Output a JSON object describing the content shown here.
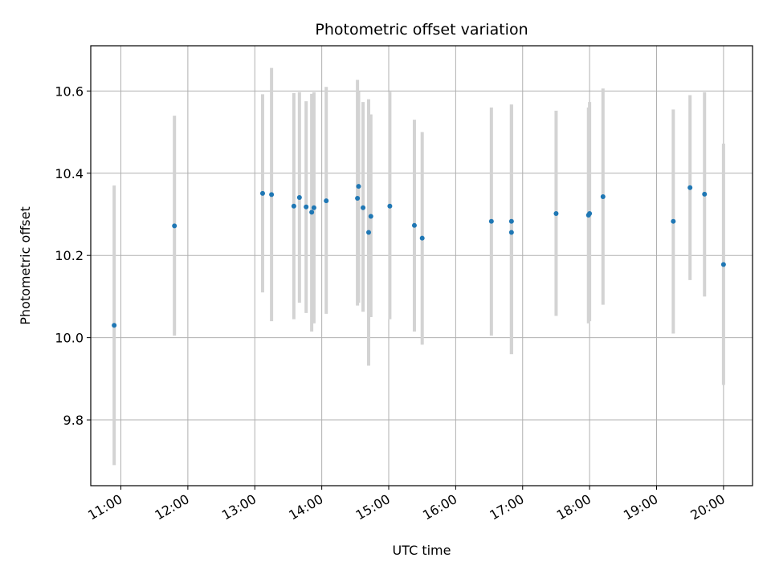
{
  "chart_data": {
    "type": "scatter",
    "title": "Photometric offset variation",
    "xlabel": "UTC time",
    "ylabel": "Photometric offset",
    "xlim": [
      "10:33",
      "20:26"
    ],
    "ylim": [
      9.64,
      10.71
    ],
    "x_ticks": [
      "11:00",
      "12:00",
      "13:00",
      "14:00",
      "15:00",
      "16:00",
      "17:00",
      "18:00",
      "19:00",
      "20:00"
    ],
    "y_ticks": [
      "9.8",
      "10.0",
      "10.2",
      "10.4",
      "10.6"
    ],
    "grid": true,
    "marker_color": "#1f77b4",
    "errorbar_color": "#d3d3d3",
    "points": [
      {
        "t": "10:54",
        "y": 10.03,
        "lo": 9.69,
        "hi": 10.37
      },
      {
        "t": "11:48",
        "y": 10.272,
        "lo": 10.005,
        "hi": 10.54
      },
      {
        "t": "13:07",
        "y": 10.351,
        "lo": 10.11,
        "hi": 10.592
      },
      {
        "t": "13:15",
        "y": 10.348,
        "lo": 10.04,
        "hi": 10.656
      },
      {
        "t": "13:35",
        "y": 10.32,
        "lo": 10.045,
        "hi": 10.595
      },
      {
        "t": "13:40",
        "y": 10.341,
        "lo": 10.085,
        "hi": 10.597
      },
      {
        "t": "13:46",
        "y": 10.318,
        "lo": 10.06,
        "hi": 10.575
      },
      {
        "t": "13:51",
        "y": 10.305,
        "lo": 10.015,
        "hi": 10.593
      },
      {
        "t": "13:53",
        "y": 10.316,
        "lo": 10.035,
        "hi": 10.597
      },
      {
        "t": "14:04",
        "y": 10.333,
        "lo": 10.058,
        "hi": 10.61
      },
      {
        "t": "14:32",
        "y": 10.339,
        "lo": 10.078,
        "hi": 10.627
      },
      {
        "t": "14:33",
        "y": 10.368,
        "lo": 10.085,
        "hi": 10.6
      },
      {
        "t": "14:37",
        "y": 10.316,
        "lo": 10.063,
        "hi": 10.573
      },
      {
        "t": "14:42",
        "y": 10.256,
        "lo": 9.932,
        "hi": 10.58
      },
      {
        "t": "14:44",
        "y": 10.295,
        "lo": 10.05,
        "hi": 10.543
      },
      {
        "t": "15:01",
        "y": 10.32,
        "lo": 10.045,
        "hi": 10.598
      },
      {
        "t": "15:23",
        "y": 10.273,
        "lo": 10.015,
        "hi": 10.53
      },
      {
        "t": "15:30",
        "y": 10.242,
        "lo": 9.983,
        "hi": 10.5
      },
      {
        "t": "16:32",
        "y": 10.283,
        "lo": 10.005,
        "hi": 10.56
      },
      {
        "t": "16:50",
        "y": 10.283,
        "lo": 9.96,
        "hi": 10.567
      },
      {
        "t": "16:50",
        "y": 10.256,
        "lo": 9.96,
        "hi": 10.567
      },
      {
        "t": "17:30",
        "y": 10.302,
        "lo": 10.053,
        "hi": 10.552
      },
      {
        "t": "17:59",
        "y": 10.298,
        "lo": 10.035,
        "hi": 10.56
      },
      {
        "t": "18:00",
        "y": 10.302,
        "lo": 10.04,
        "hi": 10.573
      },
      {
        "t": "18:12",
        "y": 10.343,
        "lo": 10.08,
        "hi": 10.606
      },
      {
        "t": "19:15",
        "y": 10.283,
        "lo": 10.01,
        "hi": 10.555
      },
      {
        "t": "19:30",
        "y": 10.365,
        "lo": 10.14,
        "hi": 10.59
      },
      {
        "t": "19:43",
        "y": 10.349,
        "lo": 10.1,
        "hi": 10.597
      },
      {
        "t": "20:00",
        "y": 10.178,
        "lo": 9.885,
        "hi": 10.472
      }
    ]
  }
}
